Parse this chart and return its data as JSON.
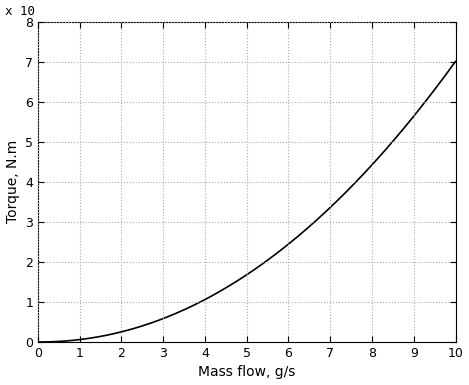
{
  "xlabel": "Mass flow, g/s",
  "ylabel": "Torque, N.m",
  "scale_label": "x 10",
  "x_min": 0,
  "x_max": 10,
  "y_min": 0,
  "y_max": 8,
  "x_ticks": [
    0,
    1,
    2,
    3,
    4,
    5,
    6,
    7,
    8,
    9,
    10
  ],
  "y_ticks": [
    0,
    1,
    2,
    3,
    4,
    5,
    6,
    7,
    8
  ],
  "power_exponent": 2.06,
  "power_scale": 0.061,
  "line_color": "#000000",
  "grid_color": "#aaaaaa",
  "background_color": "#ffffff",
  "font_size_labels": 10,
  "font_size_ticks": 9,
  "font_size_scale": 9,
  "figsize": [
    4.69,
    3.85
  ],
  "dpi": 100
}
